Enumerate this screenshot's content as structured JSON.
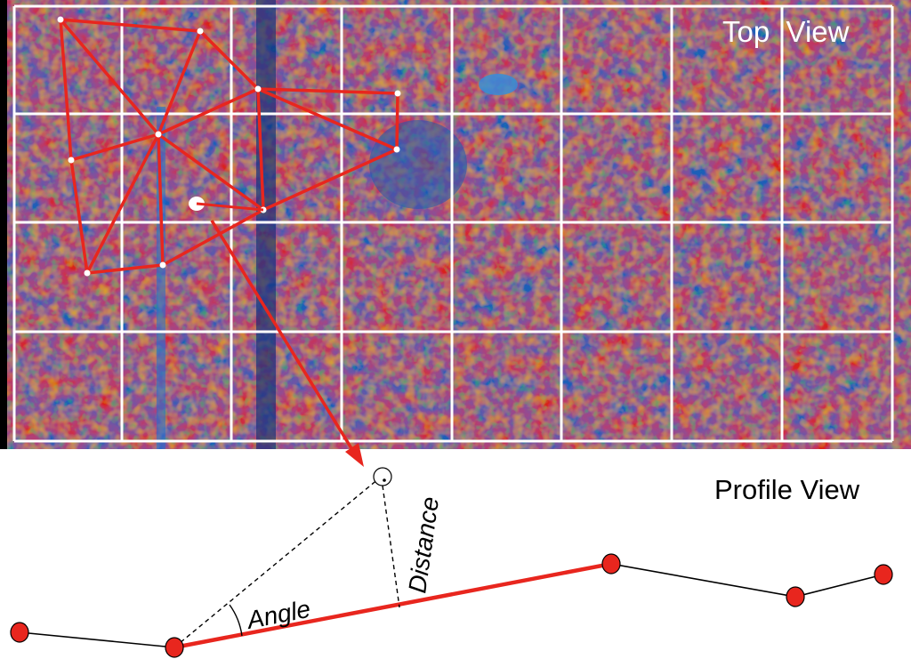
{
  "top_view": {
    "label": "Top  View",
    "grid": {
      "rows": 4,
      "cols": 8,
      "line_color": "#ffffff"
    },
    "network_color": "#e8261e",
    "point_color": "#ffffff"
  },
  "profile_view": {
    "label": "Profile View",
    "angle_label": "Angle",
    "distance_label": "Distance",
    "point_fill": "#e8261e",
    "highlight_color": "#e8261e",
    "line_color": "#000000"
  }
}
